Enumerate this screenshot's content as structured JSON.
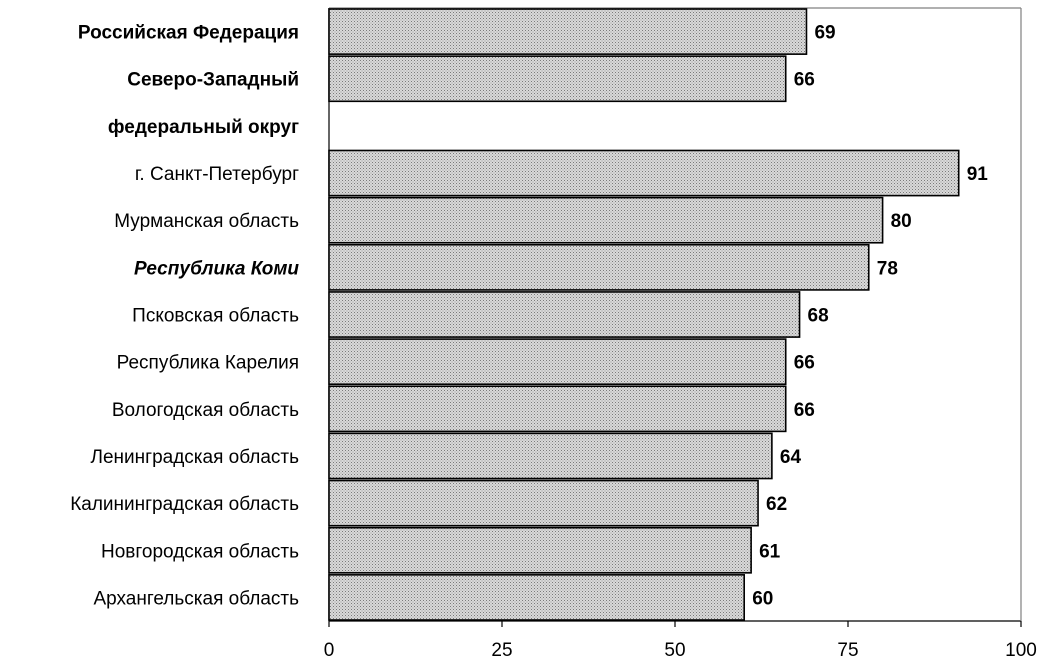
{
  "chart_data": {
    "type": "bar",
    "orientation": "horizontal",
    "categories": [
      "Российская Федерация",
      "Северо-Западный федеральный округ",
      "г. Санкт-Петербург",
      "Мурманская область",
      "Республика Коми",
      "Псковская область",
      "Республика Карелия",
      "Вологодская область",
      "Ленинградская область",
      "Калининградская область",
      "Новгородская область",
      "Архангельская область"
    ],
    "category_lines": [
      [
        "Российская Федерация"
      ],
      [
        "Северо-Западный",
        "федеральный округ"
      ],
      [
        "г. Санкт-Петербург"
      ],
      [
        "Мурманская область"
      ],
      [
        "Республика Коми"
      ],
      [
        "Псковская область"
      ],
      [
        "Республика Карелия"
      ],
      [
        "Вологодская область"
      ],
      [
        "Ленинградская область"
      ],
      [
        "Калининградская область"
      ],
      [
        "Новгородская область"
      ],
      [
        "Архангельская область"
      ]
    ],
    "label_styles": [
      "bold",
      "bold",
      "normal",
      "normal",
      "bolditalic",
      "normal",
      "normal",
      "normal",
      "normal",
      "normal",
      "normal",
      "normal"
    ],
    "values": [
      69,
      66,
      91,
      80,
      78,
      68,
      66,
      66,
      64,
      62,
      61,
      60
    ],
    "value_labels": [
      "69",
      "66",
      "91",
      "80",
      "78",
      "68",
      "66",
      "66",
      "64",
      "62",
      "61",
      "60"
    ],
    "xlim": [
      0,
      100
    ],
    "xticks": [
      "0",
      "25",
      "50",
      "75",
      "100"
    ],
    "grid": false,
    "bar_color": "#c8c8c8",
    "bar_pattern": "fine-dots"
  }
}
